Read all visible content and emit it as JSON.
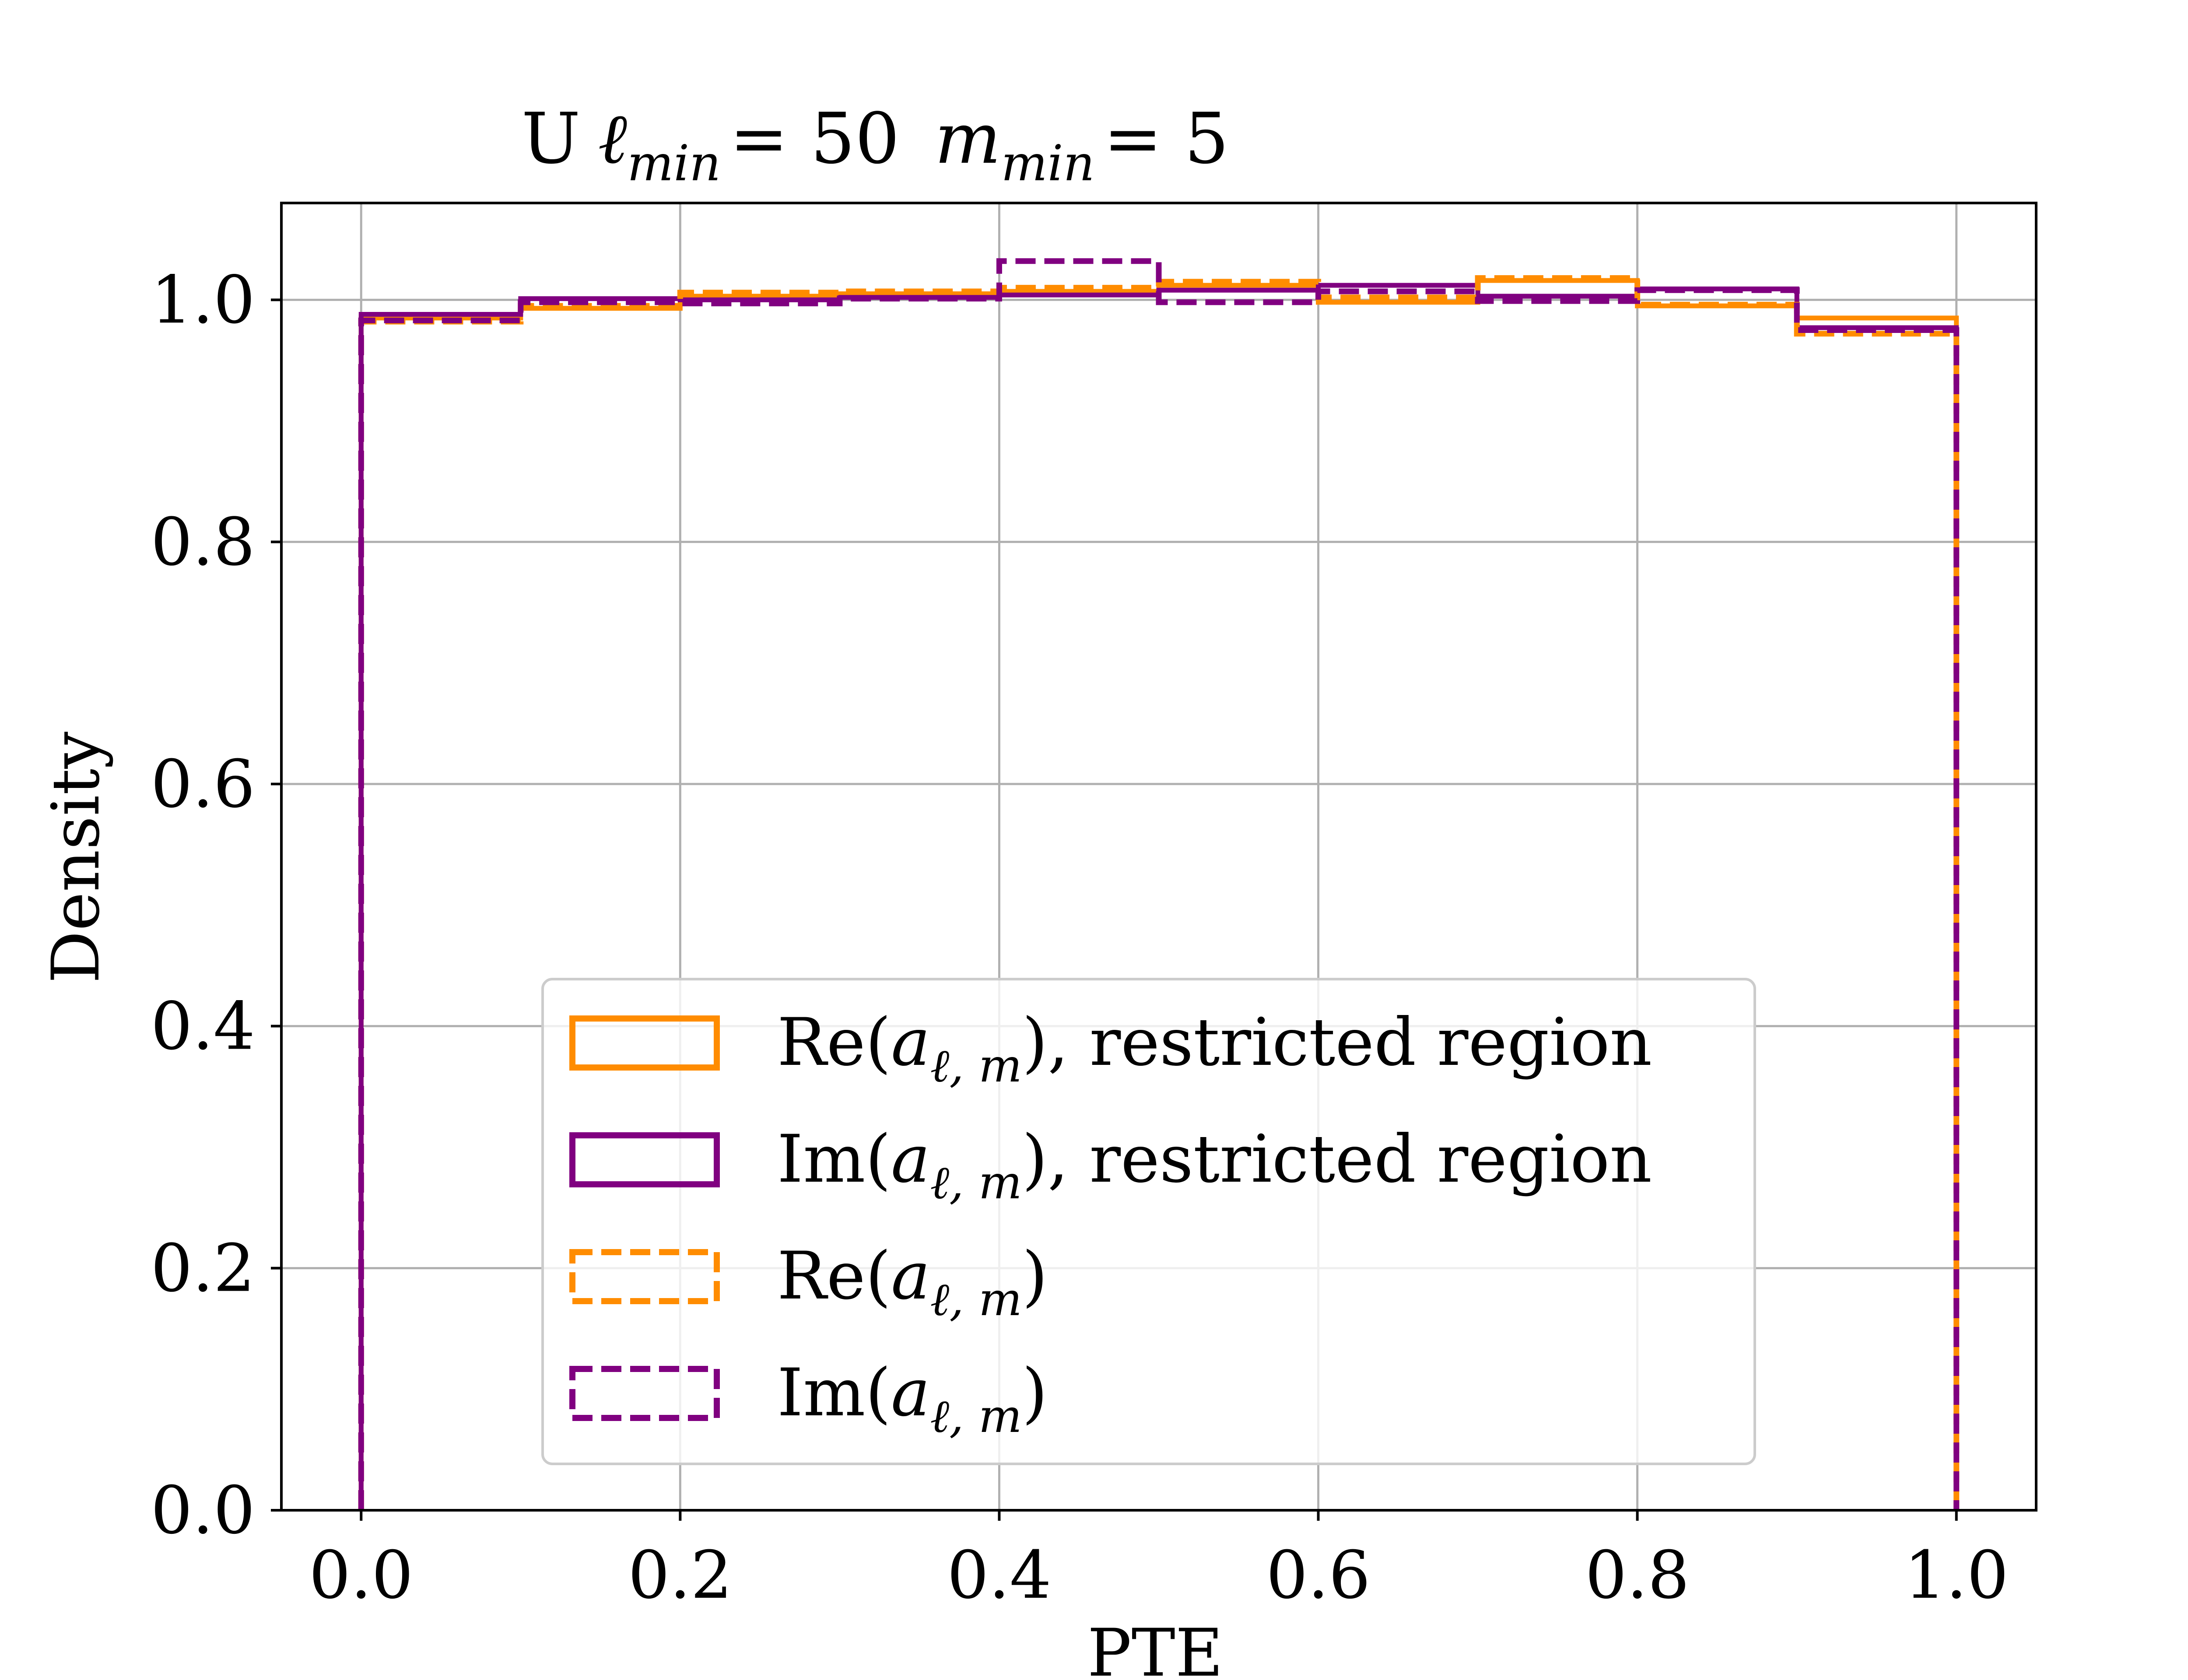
{
  "chart_data": {
    "type": "histogram",
    "title": {
      "prefix": "U",
      "ell": "ℓ",
      "ell_sub": "min",
      "ell_val": "= 50",
      "m": "m",
      "m_sub": "min",
      "m_val": "= 5"
    },
    "xlabel": "PTE",
    "ylabel": "Density",
    "xlim": [
      -0.05,
      1.05
    ],
    "ylim": [
      0.0,
      1.08
    ],
    "xticks": [
      "0.0",
      "0.2",
      "0.4",
      "0.6",
      "0.8",
      "1.0"
    ],
    "yticks": [
      "0.0",
      "0.2",
      "0.4",
      "0.6",
      "0.8",
      "1.0"
    ],
    "grid": true,
    "legend_position": "lower-center",
    "bin_edges": [
      0.0,
      0.1,
      0.2,
      0.3,
      0.4,
      0.5,
      0.6,
      0.7,
      0.8,
      0.9,
      1.0
    ],
    "series": [
      {
        "name_prefix": "Re(",
        "name_var": "a",
        "name_sub": "ℓ, m",
        "name_suffix": "), restricted region",
        "color": "#FF8C00",
        "linestyle": "solid",
        "values": [
          0.985,
          0.993,
          1.003,
          1.005,
          1.007,
          1.012,
          0.998,
          1.016,
          0.995,
          0.985
        ]
      },
      {
        "name_prefix": "Im(",
        "name_var": "a",
        "name_sub": "ℓ, m",
        "name_suffix": "), restricted region",
        "color": "#800080",
        "linestyle": "solid",
        "values": [
          0.988,
          1.001,
          1.0,
          1.002,
          1.004,
          1.008,
          1.012,
          1.003,
          1.009,
          0.977
        ]
      },
      {
        "name_prefix": "Re(",
        "name_var": "a",
        "name_sub": "ℓ, m",
        "name_suffix": ")",
        "color": "#FF8C00",
        "linestyle": "dashed",
        "values": [
          0.982,
          0.995,
          1.006,
          1.007,
          1.01,
          1.015,
          1.002,
          1.018,
          0.996,
          0.972
        ]
      },
      {
        "name_prefix": "Im(",
        "name_var": "a",
        "name_sub": "ℓ, m",
        "name_suffix": ")",
        "color": "#800080",
        "linestyle": "dashed",
        "values": [
          0.983,
          0.998,
          0.997,
          1.001,
          1.032,
          0.998,
          1.007,
          0.999,
          1.008,
          0.975
        ]
      }
    ]
  }
}
